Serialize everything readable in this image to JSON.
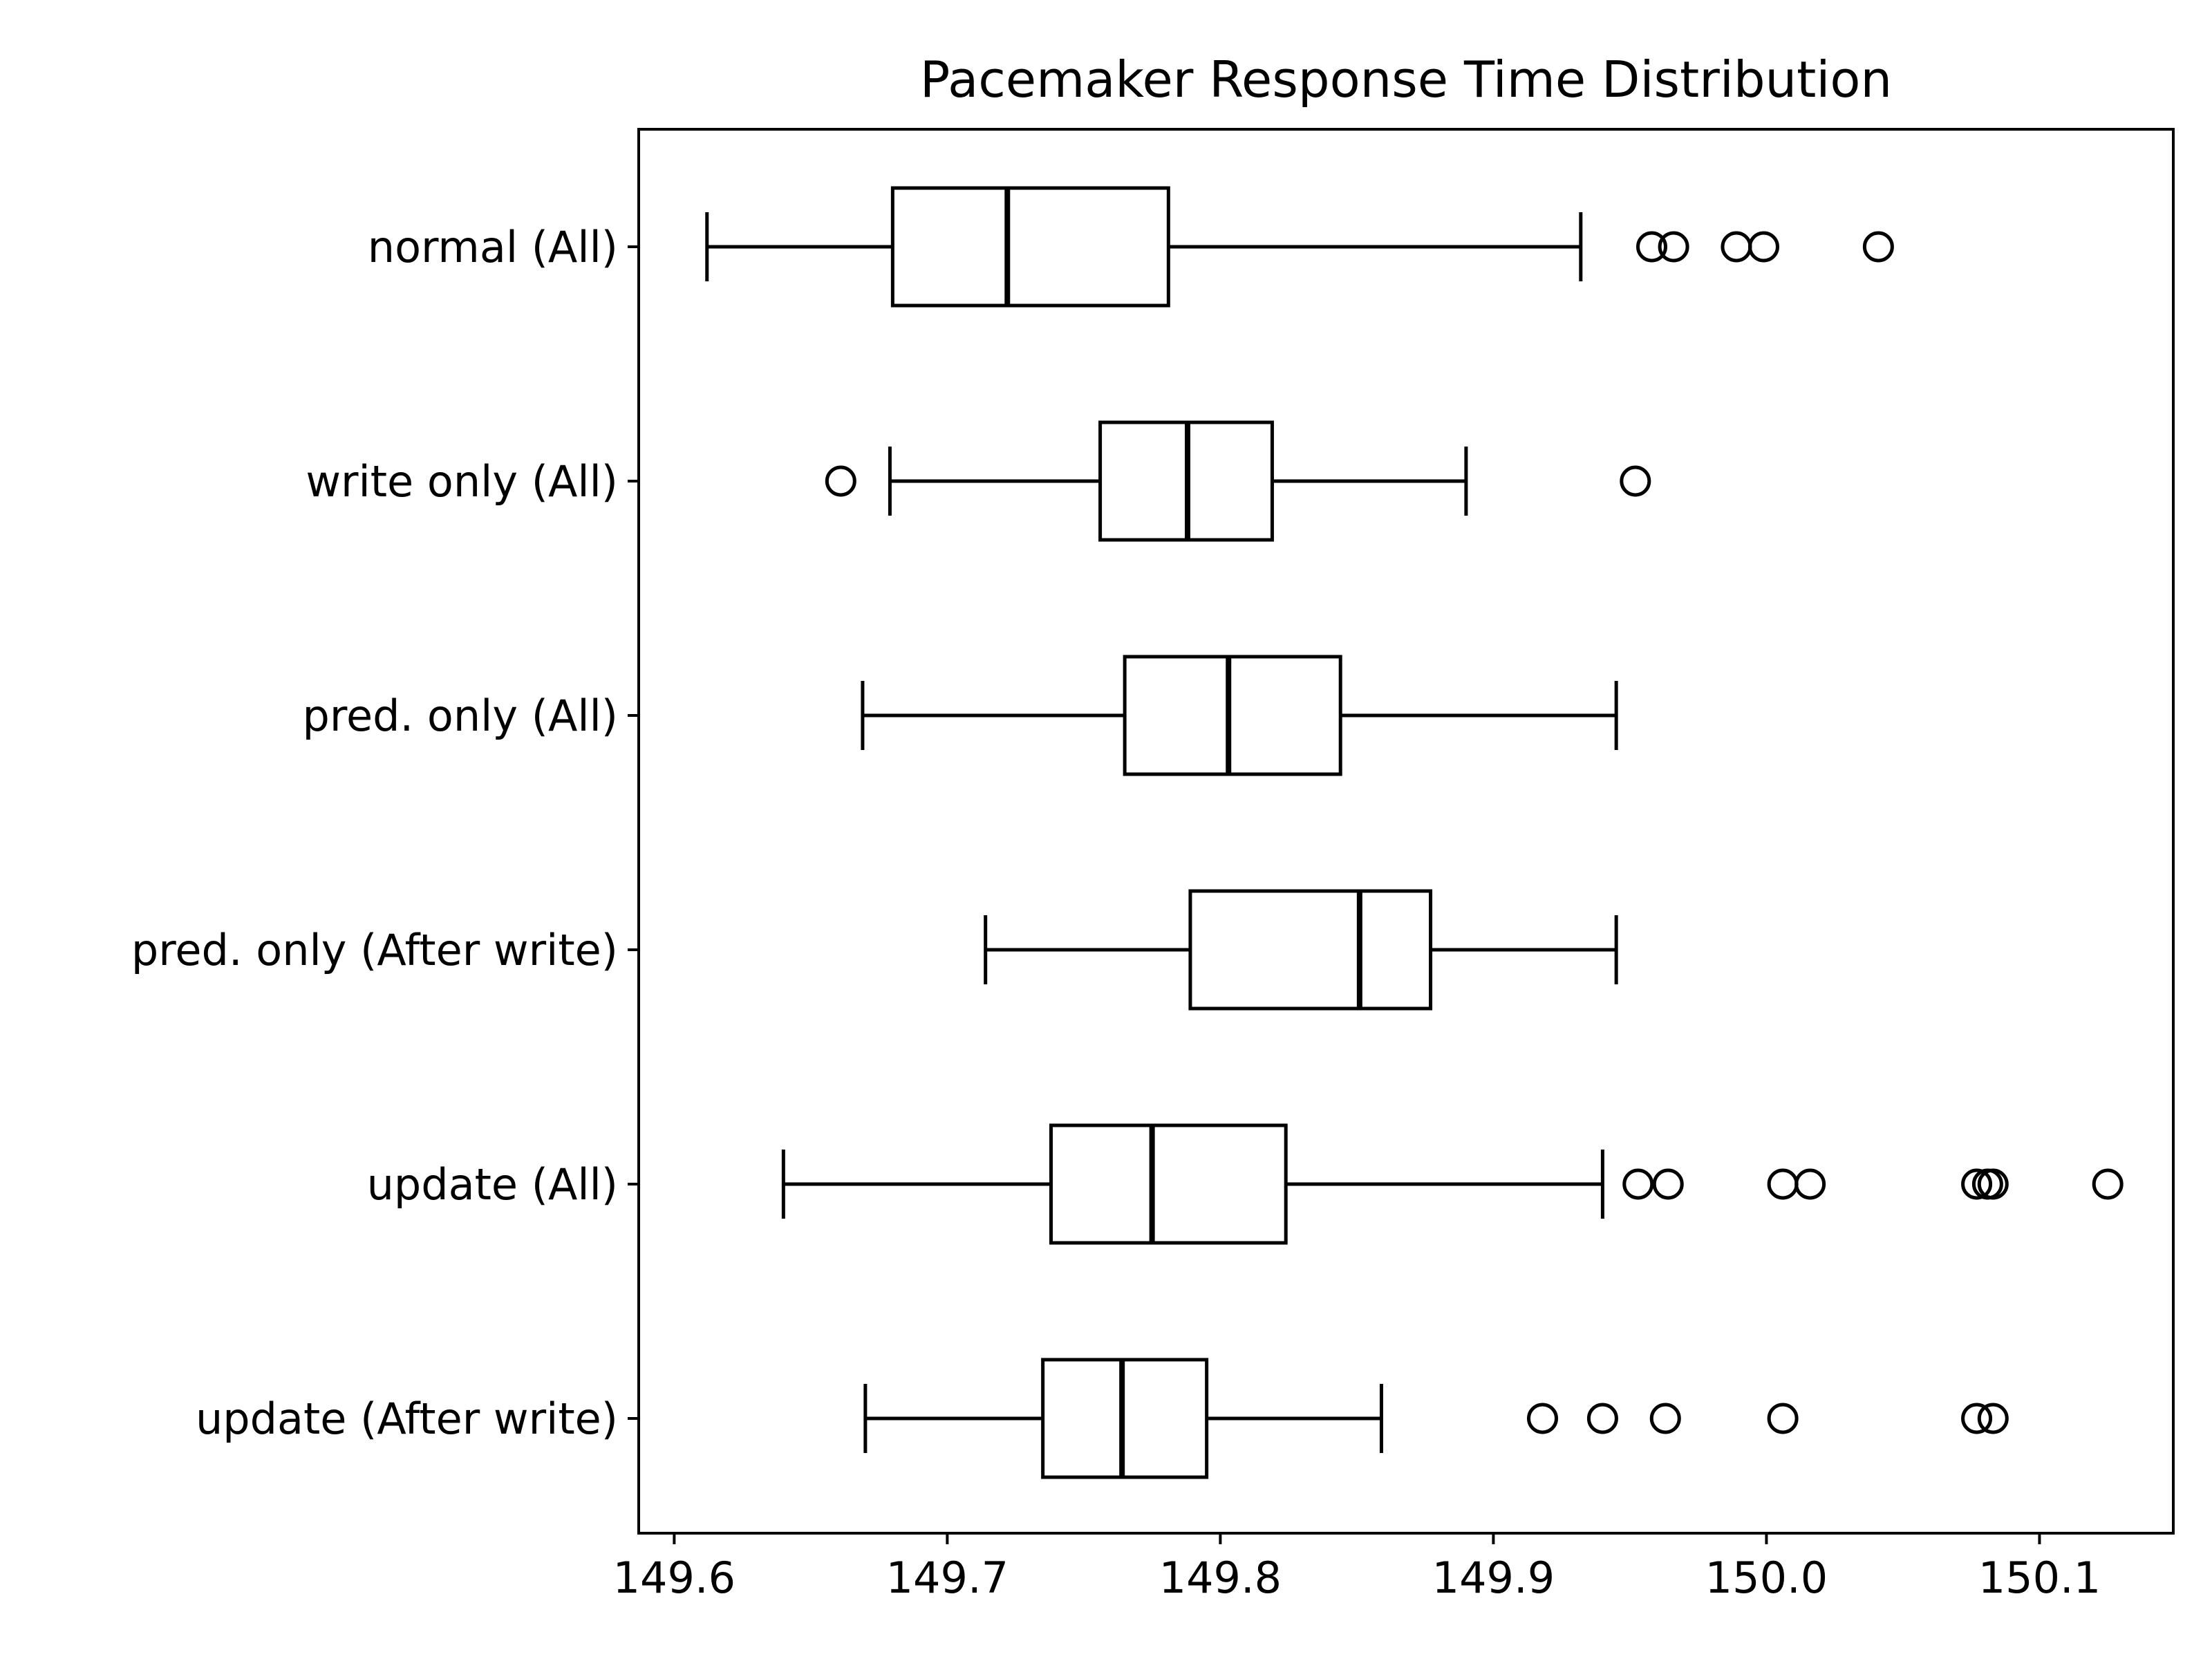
{
  "chart_data": {
    "type": "boxplot",
    "orientation": "horizontal",
    "title": "Pacemaker Response Time Distribution",
    "xlabel": "",
    "ylabel": "",
    "xlim": [
      149.587,
      150.149
    ],
    "x_ticks": [
      149.6,
      149.7,
      149.8,
      149.9,
      150.0,
      150.1
    ],
    "x_tick_labels": [
      "149.6",
      "149.7",
      "149.8",
      "149.9",
      "150.0",
      "150.1"
    ],
    "grid": false,
    "legend": "none",
    "colors": {
      "line": "#000000",
      "background": "#ffffff"
    },
    "categories": [
      "normal (All)",
      "write only (All)",
      "pred. only (All)",
      "pred. only (After write)",
      "update (All)",
      "update (After write)"
    ],
    "boxes": [
      {
        "whislo": 149.612,
        "q1": 149.68,
        "med": 149.722,
        "q3": 149.781,
        "whishi": 149.932,
        "fliers": [
          149.958,
          149.966,
          149.989,
          149.999,
          150.041
        ]
      },
      {
        "whislo": 149.679,
        "q1": 149.756,
        "med": 149.788,
        "q3": 149.819,
        "whishi": 149.89,
        "fliers": [
          149.661,
          149.952
        ]
      },
      {
        "whislo": 149.669,
        "q1": 149.765,
        "med": 149.803,
        "q3": 149.844,
        "whishi": 149.945,
        "fliers": []
      },
      {
        "whislo": 149.714,
        "q1": 149.789,
        "med": 149.851,
        "q3": 149.877,
        "whishi": 149.945,
        "fliers": []
      },
      {
        "whislo": 149.64,
        "q1": 149.738,
        "med": 149.775,
        "q3": 149.824,
        "whishi": 149.94,
        "fliers": [
          149.953,
          149.964,
          150.006,
          150.016,
          150.077,
          150.081,
          150.083,
          150.125
        ]
      },
      {
        "whislo": 149.67,
        "q1": 149.735,
        "med": 149.764,
        "q3": 149.795,
        "whishi": 149.859,
        "fliers": [
          149.918,
          149.94,
          149.963,
          150.006,
          150.077,
          150.083
        ]
      }
    ]
  }
}
